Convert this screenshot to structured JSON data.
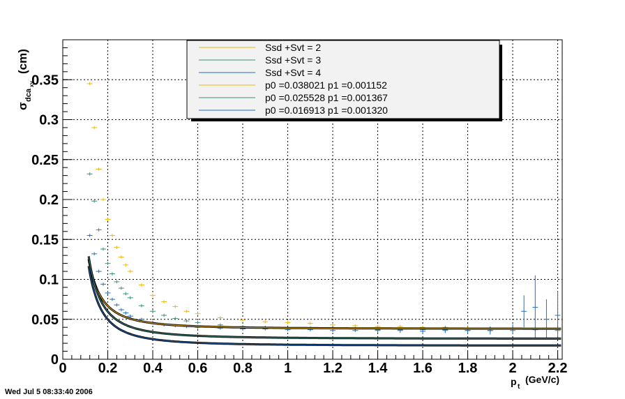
{
  "timestamp": "Wed Jul  5 08:33:40 2006",
  "chart_data": {
    "type": "scatter",
    "xlabel": "p_t (GeV/c)",
    "xlabel_main": "p",
    "xlabel_sub": "t",
    "xlabel_unit": "(GeV/c)",
    "ylabel_sigma": "σ",
    "ylabel_sub": "dca",
    "ylabel_subsub": "xy",
    "ylabel_unit": "(cm)",
    "xlim": [
      0,
      2.22
    ],
    "ylim": [
      0,
      0.4
    ],
    "x_ticks": [
      "0",
      "0.2",
      "0.4",
      "0.6",
      "0.8",
      "1",
      "1.2",
      "1.4",
      "1.6",
      "1.8",
      "2",
      "2.2"
    ],
    "y_ticks": [
      "0",
      "0.05",
      "0.1",
      "0.15",
      "0.2",
      "0.25",
      "0.3",
      "0.35"
    ],
    "grid": true,
    "legend_placement": "top-center",
    "legend": [
      {
        "label": "Ssd +Svt = 2",
        "color": "#f2b705"
      },
      {
        "label": "Ssd +Svt = 3",
        "color": "#3a8f7e"
      },
      {
        "label": "Ssd +Svt = 4",
        "color": "#1f6fc4"
      },
      {
        "label": "p0 =0.038021 p1 =0.001152",
        "color": "#f2b705"
      },
      {
        "label": "p0 =0.025528 p1 =0.001367",
        "color": "#3a8f7e"
      },
      {
        "label": "p0 =0.016913 p1 =0.001320",
        "color": "#1f6fc4"
      }
    ],
    "series": [
      {
        "color": "#f2b705",
        "fit": {
          "p0": 0.038021,
          "p1": 0.001152
        },
        "x": [
          0.12,
          0.14,
          0.16,
          0.18,
          0.2,
          0.22,
          0.24,
          0.26,
          0.28,
          0.3,
          0.35,
          0.4,
          0.45,
          0.5,
          0.55,
          0.6,
          0.7,
          0.8,
          0.9,
          1.0,
          1.1,
          1.2,
          1.3,
          1.4,
          1.5,
          1.6,
          1.7,
          1.8,
          1.9,
          2.0,
          2.1,
          2.2
        ],
        "y": [
          0.345,
          0.29,
          0.238,
          0.2,
          0.175,
          0.155,
          0.14,
          0.128,
          0.118,
          0.11,
          0.093,
          0.08,
          0.072,
          0.066,
          0.06,
          0.057,
          0.052,
          0.049,
          0.047,
          0.046,
          0.045,
          0.043,
          0.042,
          0.041,
          0.041,
          0.04,
          0.04,
          0.039,
          0.039,
          0.038,
          0.037,
          0.038
        ]
      },
      {
        "color": "#3a8f7e",
        "fit": {
          "p0": 0.025528,
          "p1": 0.001367
        },
        "x": [
          0.12,
          0.14,
          0.16,
          0.18,
          0.2,
          0.22,
          0.24,
          0.26,
          0.28,
          0.3,
          0.35,
          0.4,
          0.45,
          0.5,
          0.55,
          0.6,
          0.7,
          0.8,
          0.9,
          1.0,
          1.1,
          1.2,
          1.3,
          1.4,
          1.5,
          1.6,
          1.7,
          1.8,
          1.9,
          2.0,
          2.1,
          2.2
        ],
        "y": [
          0.232,
          0.198,
          0.162,
          0.138,
          0.12,
          0.107,
          0.097,
          0.089,
          0.082,
          0.077,
          0.067,
          0.06,
          0.055,
          0.051,
          0.048,
          0.046,
          0.043,
          0.041,
          0.04,
          0.039,
          0.039,
          0.038,
          0.038,
          0.037,
          0.037,
          0.037,
          0.036,
          0.036,
          0.036,
          0.036,
          0.037,
          0.036
        ]
      },
      {
        "color": "#1f6fc4",
        "fit": {
          "p0": 0.016913,
          "p1": 0.00132
        },
        "x": [
          0.12,
          0.14,
          0.16,
          0.18,
          0.2,
          0.22,
          0.24,
          0.26,
          0.28,
          0.3,
          0.35,
          0.4,
          0.45,
          0.5,
          0.55,
          0.6,
          0.7,
          0.8,
          0.9,
          1.0,
          1.1,
          1.2,
          1.3,
          1.4,
          1.5,
          1.6,
          1.7,
          1.8,
          1.9,
          2.0,
          2.05,
          2.1,
          2.15,
          2.2
        ],
        "y": [
          0.155,
          0.132,
          0.11,
          0.094,
          0.083,
          0.075,
          0.068,
          0.062,
          0.058,
          0.054,
          0.05,
          0.046,
          0.043,
          0.042,
          0.041,
          0.04,
          0.039,
          0.038,
          0.038,
          0.037,
          0.037,
          0.036,
          0.036,
          0.036,
          0.036,
          0.035,
          0.037,
          0.036,
          0.036,
          0.038,
          0.06,
          0.065,
          0.05,
          0.055
        ],
        "err": [
          0.002,
          0.002,
          0.002,
          0.002,
          0.002,
          0.002,
          0.002,
          0.002,
          0.002,
          0.002,
          0.002,
          0.002,
          0.002,
          0.002,
          0.002,
          0.002,
          0.002,
          0.002,
          0.002,
          0.002,
          0.002,
          0.002,
          0.002,
          0.003,
          0.003,
          0.003,
          0.004,
          0.004,
          0.005,
          0.006,
          0.02,
          0.04,
          0.025,
          0.03
        ]
      }
    ]
  }
}
